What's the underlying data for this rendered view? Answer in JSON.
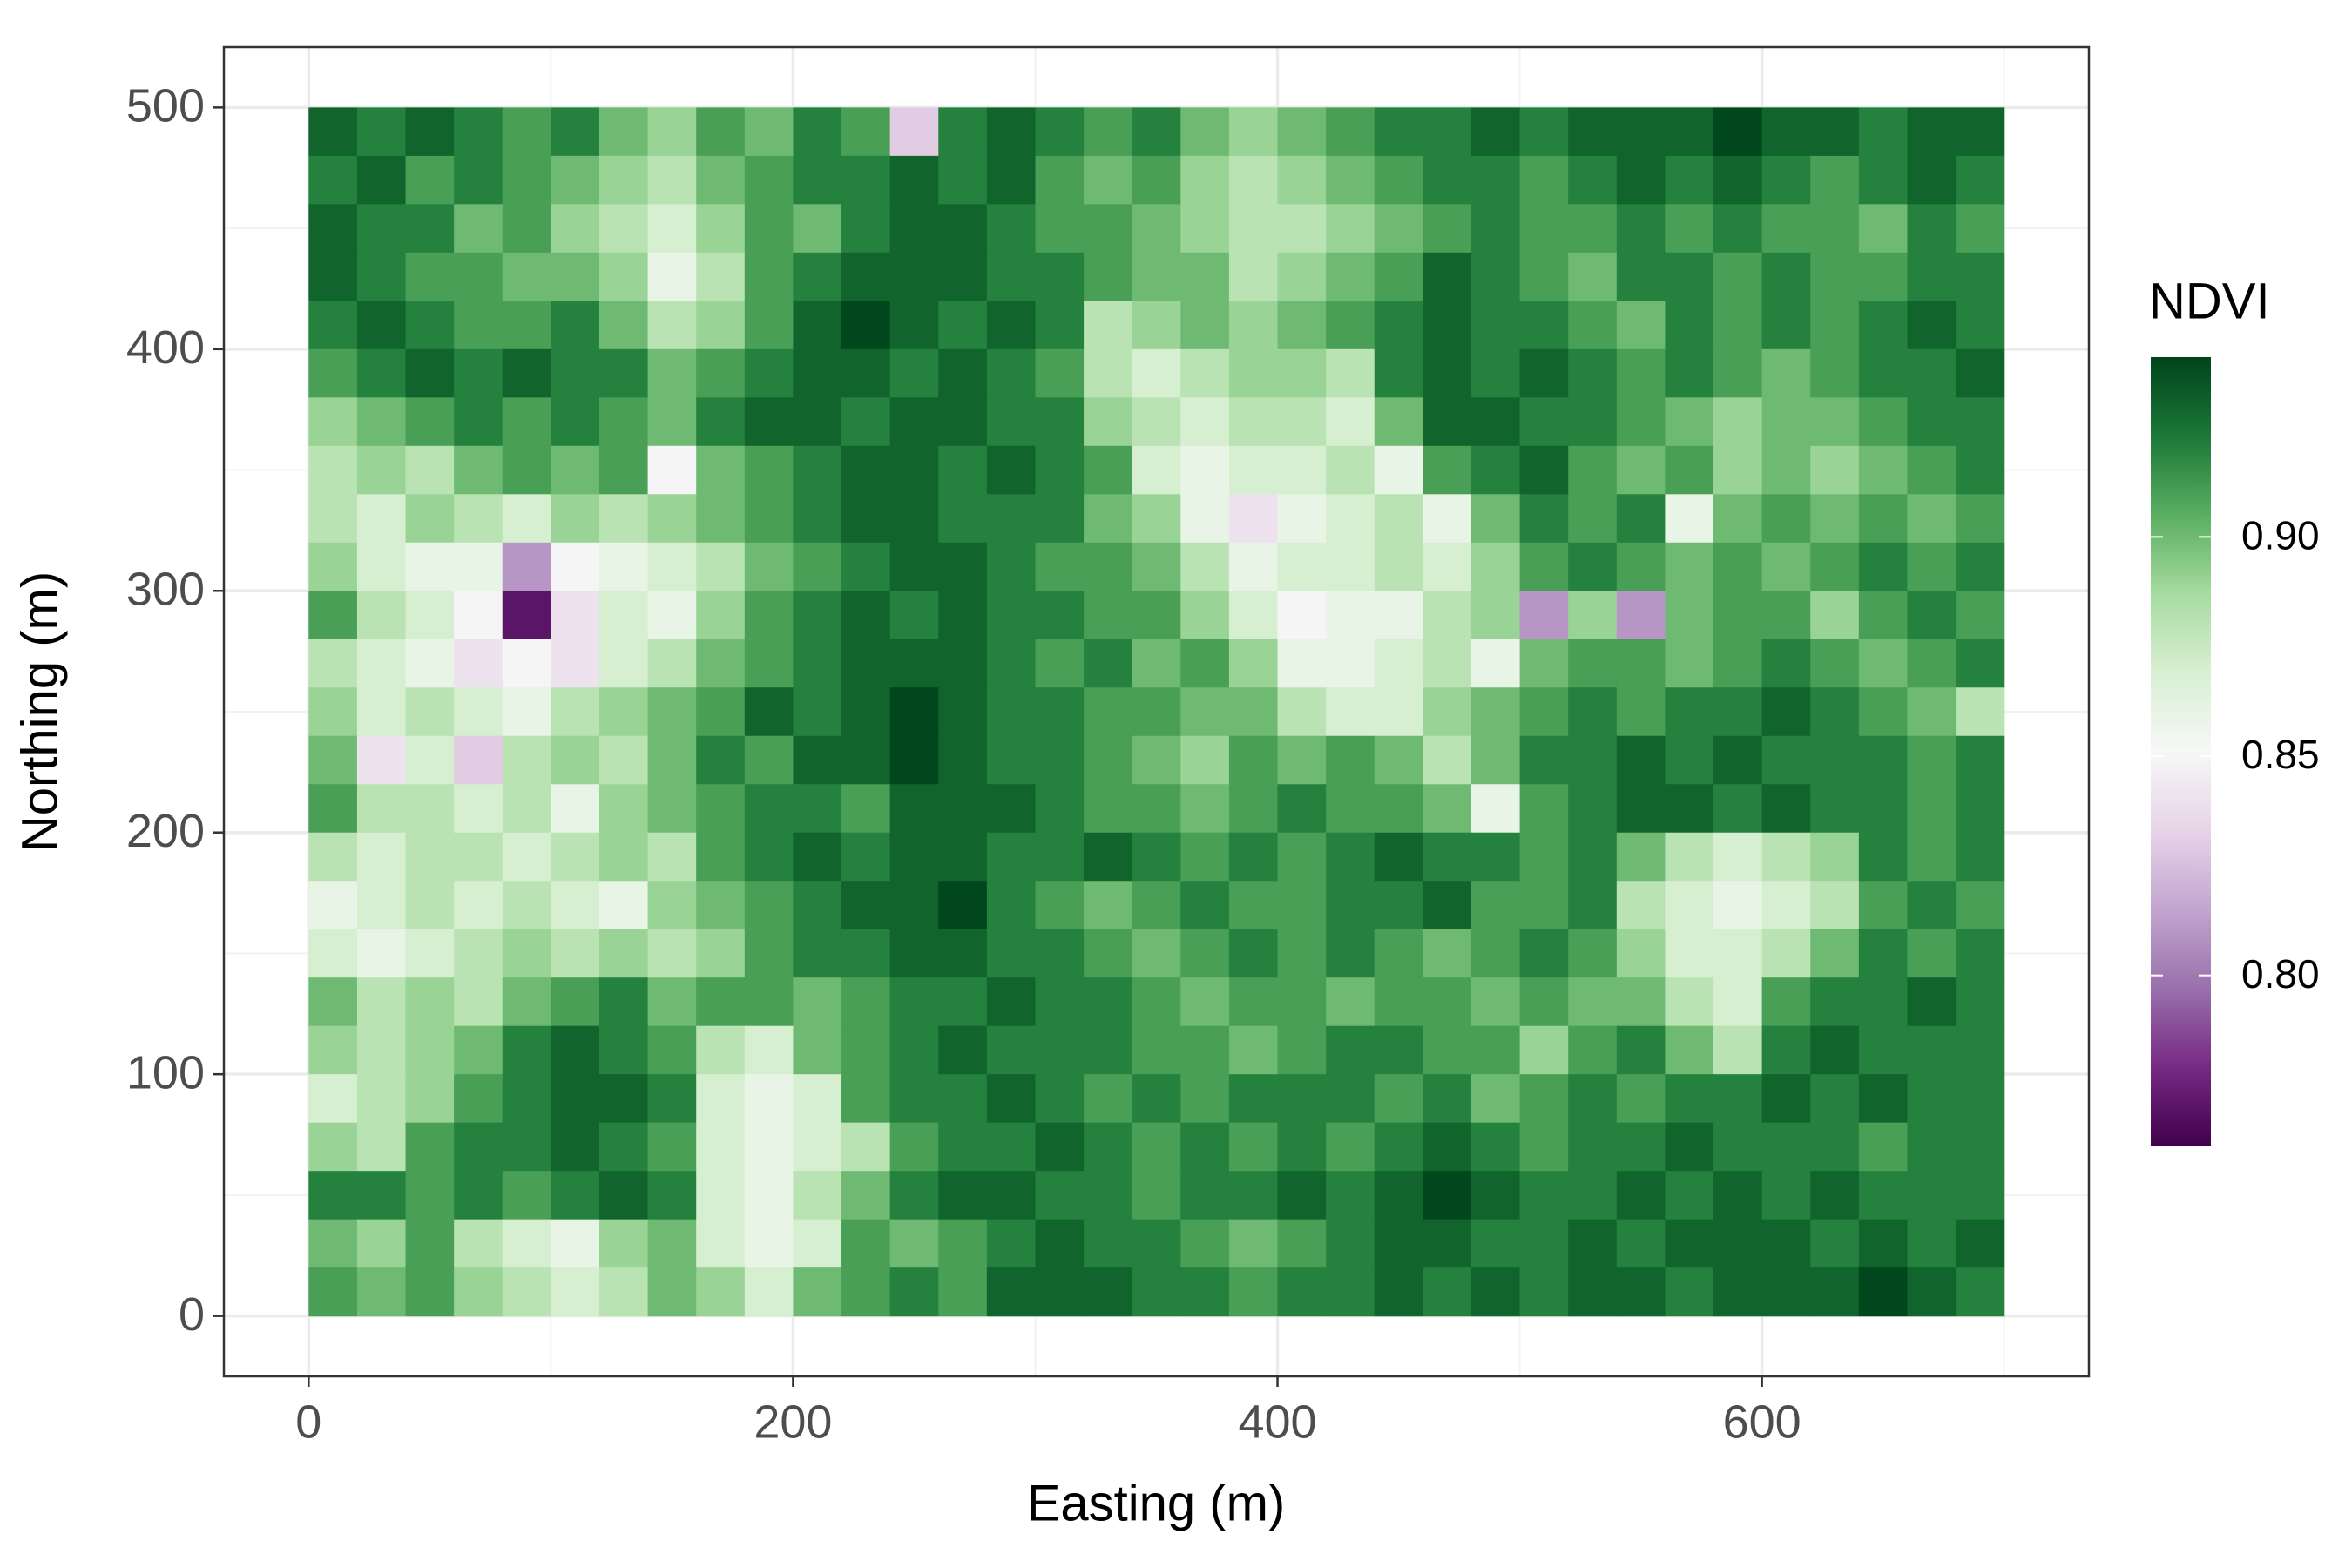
{
  "chart_data": {
    "type": "heatmap",
    "x_label": "Easting (m)",
    "y_label": "Northing (m)",
    "legend_title": "NDVI",
    "xlim": [
      -35,
      735
    ],
    "ylim": [
      -25,
      525
    ],
    "xticks": [
      0,
      200,
      400,
      600
    ],
    "yticks": [
      0,
      100,
      200,
      300,
      400,
      500
    ],
    "x_minor_grid": [
      100,
      300,
      500,
      700
    ],
    "y_minor_grid": [
      50,
      150,
      250,
      350,
      450
    ],
    "grid": true,
    "colorbar_lim": [
      0.761,
      0.941
    ],
    "colorbar_ticks": [
      {
        "value": 0.8,
        "label": "0.80"
      },
      {
        "value": 0.85,
        "label": "0.85"
      },
      {
        "value": 0.9,
        "label": "0.90"
      }
    ],
    "colors": [
      "#40004b",
      "#762a83",
      "#9970ab",
      "#c2a5cf",
      "#e7d4e8",
      "#f7f7f7",
      "#d9f0d3",
      "#a6dba0",
      "#5aae61",
      "#1b7837",
      "#00441b"
    ],
    "legend_position": "right",
    "x": [
      10,
      30,
      50,
      70,
      90,
      110,
      130,
      150,
      170,
      190,
      210,
      230,
      250,
      270,
      290,
      310,
      330,
      350,
      370,
      390,
      410,
      430,
      450,
      470,
      490,
      510,
      530,
      550,
      570,
      590,
      610,
      630,
      650,
      670,
      690
    ],
    "y": [
      490,
      470,
      450,
      430,
      410,
      390,
      370,
      350,
      330,
      310,
      290,
      270,
      250,
      230,
      210,
      190,
      170,
      150,
      130,
      110,
      90,
      70,
      50,
      30,
      10
    ],
    "values": [
      [
        0.93,
        0.92,
        0.93,
        0.92,
        0.91,
        0.92,
        0.9,
        0.89,
        0.91,
        0.9,
        0.92,
        0.91,
        0.83,
        0.92,
        0.93,
        0.92,
        0.91,
        0.92,
        0.9,
        0.89,
        0.9,
        0.91,
        0.92,
        0.92,
        0.93,
        0.92,
        0.93,
        0.93,
        0.93,
        0.94,
        0.93,
        0.93,
        0.92,
        0.93,
        0.93
      ],
      [
        0.92,
        0.93,
        0.91,
        0.92,
        0.91,
        0.9,
        0.89,
        0.88,
        0.9,
        0.91,
        0.92,
        0.92,
        0.93,
        0.92,
        0.93,
        0.91,
        0.9,
        0.91,
        0.89,
        0.88,
        0.89,
        0.9,
        0.91,
        0.92,
        0.92,
        0.91,
        0.92,
        0.93,
        0.92,
        0.93,
        0.92,
        0.91,
        0.92,
        0.93,
        0.92
      ],
      [
        0.93,
        0.92,
        0.92,
        0.9,
        0.91,
        0.89,
        0.88,
        0.87,
        0.89,
        0.91,
        0.9,
        0.92,
        0.93,
        0.93,
        0.92,
        0.91,
        0.91,
        0.9,
        0.89,
        0.88,
        0.88,
        0.89,
        0.9,
        0.91,
        0.92,
        0.91,
        0.91,
        0.92,
        0.91,
        0.92,
        0.91,
        0.91,
        0.9,
        0.92,
        0.91
      ],
      [
        0.93,
        0.92,
        0.91,
        0.91,
        0.9,
        0.9,
        0.89,
        0.86,
        0.88,
        0.91,
        0.92,
        0.93,
        0.93,
        0.93,
        0.92,
        0.92,
        0.91,
        0.9,
        0.9,
        0.88,
        0.89,
        0.9,
        0.91,
        0.93,
        0.92,
        0.91,
        0.9,
        0.92,
        0.92,
        0.91,
        0.92,
        0.91,
        0.91,
        0.92,
        0.92
      ],
      [
        0.92,
        0.93,
        0.92,
        0.91,
        0.91,
        0.92,
        0.9,
        0.88,
        0.89,
        0.91,
        0.93,
        0.94,
        0.93,
        0.92,
        0.93,
        0.92,
        0.88,
        0.89,
        0.9,
        0.89,
        0.9,
        0.91,
        0.92,
        0.93,
        0.92,
        0.92,
        0.91,
        0.9,
        0.92,
        0.91,
        0.92,
        0.91,
        0.92,
        0.93,
        0.92
      ],
      [
        0.91,
        0.92,
        0.93,
        0.92,
        0.93,
        0.92,
        0.92,
        0.9,
        0.91,
        0.92,
        0.93,
        0.93,
        0.92,
        0.93,
        0.92,
        0.91,
        0.88,
        0.87,
        0.88,
        0.89,
        0.89,
        0.88,
        0.92,
        0.93,
        0.92,
        0.93,
        0.92,
        0.91,
        0.92,
        0.91,
        0.9,
        0.91,
        0.92,
        0.92,
        0.93
      ],
      [
        0.89,
        0.9,
        0.91,
        0.92,
        0.91,
        0.92,
        0.91,
        0.9,
        0.92,
        0.93,
        0.93,
        0.92,
        0.93,
        0.93,
        0.92,
        0.92,
        0.89,
        0.88,
        0.87,
        0.88,
        0.88,
        0.87,
        0.9,
        0.93,
        0.93,
        0.92,
        0.92,
        0.91,
        0.9,
        0.89,
        0.9,
        0.9,
        0.91,
        0.92,
        0.92
      ],
      [
        0.88,
        0.89,
        0.88,
        0.9,
        0.91,
        0.9,
        0.91,
        0.85,
        0.9,
        0.91,
        0.92,
        0.93,
        0.93,
        0.92,
        0.93,
        0.92,
        0.91,
        0.87,
        0.86,
        0.87,
        0.87,
        0.88,
        0.86,
        0.91,
        0.92,
        0.93,
        0.91,
        0.9,
        0.91,
        0.89,
        0.9,
        0.89,
        0.9,
        0.91,
        0.92
      ],
      [
        0.88,
        0.87,
        0.89,
        0.88,
        0.87,
        0.89,
        0.88,
        0.89,
        0.9,
        0.91,
        0.92,
        0.93,
        0.93,
        0.92,
        0.92,
        0.92,
        0.9,
        0.89,
        0.86,
        0.84,
        0.86,
        0.87,
        0.88,
        0.86,
        0.9,
        0.92,
        0.91,
        0.92,
        0.86,
        0.9,
        0.91,
        0.9,
        0.91,
        0.9,
        0.91
      ],
      [
        0.89,
        0.87,
        0.86,
        0.86,
        0.81,
        0.85,
        0.86,
        0.87,
        0.88,
        0.9,
        0.91,
        0.92,
        0.93,
        0.93,
        0.92,
        0.91,
        0.91,
        0.9,
        0.88,
        0.86,
        0.87,
        0.87,
        0.88,
        0.87,
        0.89,
        0.91,
        0.92,
        0.91,
        0.9,
        0.91,
        0.9,
        0.91,
        0.92,
        0.91,
        0.92
      ],
      [
        0.91,
        0.88,
        0.87,
        0.85,
        0.77,
        0.84,
        0.87,
        0.86,
        0.89,
        0.91,
        0.92,
        0.93,
        0.92,
        0.93,
        0.92,
        0.92,
        0.91,
        0.91,
        0.89,
        0.87,
        0.85,
        0.86,
        0.86,
        0.88,
        0.89,
        0.81,
        0.89,
        0.81,
        0.9,
        0.91,
        0.91,
        0.89,
        0.91,
        0.92,
        0.91
      ],
      [
        0.88,
        0.87,
        0.86,
        0.84,
        0.85,
        0.84,
        0.87,
        0.88,
        0.9,
        0.91,
        0.92,
        0.93,
        0.93,
        0.93,
        0.92,
        0.91,
        0.92,
        0.9,
        0.91,
        0.89,
        0.86,
        0.86,
        0.87,
        0.88,
        0.86,
        0.9,
        0.91,
        0.91,
        0.9,
        0.91,
        0.92,
        0.91,
        0.9,
        0.91,
        0.92
      ],
      [
        0.89,
        0.87,
        0.88,
        0.87,
        0.86,
        0.88,
        0.89,
        0.9,
        0.91,
        0.93,
        0.92,
        0.93,
        0.94,
        0.93,
        0.92,
        0.92,
        0.91,
        0.91,
        0.9,
        0.9,
        0.88,
        0.87,
        0.87,
        0.89,
        0.9,
        0.91,
        0.92,
        0.91,
        0.92,
        0.92,
        0.93,
        0.92,
        0.91,
        0.9,
        0.88
      ],
      [
        0.9,
        0.84,
        0.87,
        0.83,
        0.88,
        0.89,
        0.88,
        0.9,
        0.92,
        0.91,
        0.93,
        0.93,
        0.94,
        0.93,
        0.92,
        0.92,
        0.91,
        0.9,
        0.89,
        0.91,
        0.9,
        0.91,
        0.9,
        0.88,
        0.9,
        0.92,
        0.92,
        0.93,
        0.92,
        0.93,
        0.92,
        0.92,
        0.92,
        0.91,
        0.92
      ],
      [
        0.91,
        0.88,
        0.88,
        0.87,
        0.88,
        0.86,
        0.89,
        0.9,
        0.91,
        0.92,
        0.92,
        0.91,
        0.93,
        0.93,
        0.93,
        0.92,
        0.91,
        0.91,
        0.9,
        0.91,
        0.92,
        0.91,
        0.91,
        0.9,
        0.86,
        0.91,
        0.92,
        0.93,
        0.93,
        0.92,
        0.93,
        0.92,
        0.92,
        0.91,
        0.92
      ],
      [
        0.88,
        0.87,
        0.88,
        0.88,
        0.87,
        0.88,
        0.89,
        0.88,
        0.91,
        0.92,
        0.93,
        0.92,
        0.93,
        0.93,
        0.92,
        0.92,
        0.93,
        0.92,
        0.91,
        0.92,
        0.91,
        0.92,
        0.93,
        0.92,
        0.92,
        0.91,
        0.92,
        0.9,
        0.88,
        0.87,
        0.88,
        0.89,
        0.92,
        0.91,
        0.92
      ],
      [
        0.86,
        0.87,
        0.88,
        0.87,
        0.88,
        0.87,
        0.86,
        0.89,
        0.9,
        0.91,
        0.92,
        0.93,
        0.93,
        0.94,
        0.92,
        0.91,
        0.9,
        0.91,
        0.92,
        0.91,
        0.91,
        0.92,
        0.92,
        0.93,
        0.91,
        0.91,
        0.92,
        0.88,
        0.87,
        0.86,
        0.87,
        0.88,
        0.91,
        0.92,
        0.91
      ],
      [
        0.87,
        0.86,
        0.87,
        0.88,
        0.89,
        0.88,
        0.89,
        0.88,
        0.89,
        0.91,
        0.92,
        0.92,
        0.93,
        0.93,
        0.92,
        0.92,
        0.91,
        0.9,
        0.91,
        0.92,
        0.91,
        0.92,
        0.91,
        0.9,
        0.91,
        0.92,
        0.91,
        0.89,
        0.87,
        0.87,
        0.88,
        0.9,
        0.92,
        0.91,
        0.92
      ],
      [
        0.9,
        0.88,
        0.89,
        0.88,
        0.9,
        0.91,
        0.92,
        0.9,
        0.91,
        0.91,
        0.9,
        0.91,
        0.92,
        0.92,
        0.93,
        0.92,
        0.92,
        0.91,
        0.9,
        0.91,
        0.91,
        0.9,
        0.91,
        0.91,
        0.9,
        0.91,
        0.9,
        0.9,
        0.88,
        0.87,
        0.91,
        0.92,
        0.92,
        0.93,
        0.92
      ],
      [
        0.89,
        0.88,
        0.89,
        0.9,
        0.92,
        0.93,
        0.92,
        0.91,
        0.88,
        0.87,
        0.9,
        0.91,
        0.92,
        0.93,
        0.92,
        0.92,
        0.92,
        0.91,
        0.91,
        0.9,
        0.91,
        0.92,
        0.92,
        0.91,
        0.91,
        0.89,
        0.91,
        0.92,
        0.9,
        0.88,
        0.92,
        0.93,
        0.92,
        0.92,
        0.92
      ],
      [
        0.87,
        0.88,
        0.89,
        0.91,
        0.92,
        0.93,
        0.93,
        0.92,
        0.87,
        0.86,
        0.87,
        0.91,
        0.92,
        0.92,
        0.93,
        0.92,
        0.91,
        0.92,
        0.91,
        0.92,
        0.92,
        0.92,
        0.91,
        0.92,
        0.9,
        0.91,
        0.92,
        0.91,
        0.92,
        0.92,
        0.93,
        0.92,
        0.93,
        0.92,
        0.92
      ],
      [
        0.89,
        0.88,
        0.91,
        0.92,
        0.92,
        0.93,
        0.92,
        0.91,
        0.87,
        0.86,
        0.87,
        0.88,
        0.91,
        0.92,
        0.92,
        0.93,
        0.92,
        0.91,
        0.92,
        0.91,
        0.92,
        0.91,
        0.92,
        0.93,
        0.92,
        0.91,
        0.92,
        0.92,
        0.93,
        0.92,
        0.92,
        0.92,
        0.91,
        0.92,
        0.92
      ],
      [
        0.92,
        0.92,
        0.91,
        0.92,
        0.91,
        0.92,
        0.93,
        0.92,
        0.87,
        0.86,
        0.88,
        0.9,
        0.92,
        0.93,
        0.93,
        0.92,
        0.92,
        0.91,
        0.92,
        0.92,
        0.93,
        0.92,
        0.93,
        0.94,
        0.93,
        0.92,
        0.92,
        0.93,
        0.92,
        0.93,
        0.92,
        0.93,
        0.92,
        0.92,
        0.92
      ],
      [
        0.9,
        0.89,
        0.91,
        0.88,
        0.87,
        0.86,
        0.89,
        0.9,
        0.87,
        0.86,
        0.87,
        0.91,
        0.9,
        0.91,
        0.92,
        0.93,
        0.92,
        0.92,
        0.91,
        0.9,
        0.91,
        0.92,
        0.93,
        0.93,
        0.92,
        0.92,
        0.93,
        0.92,
        0.93,
        0.93,
        0.93,
        0.92,
        0.93,
        0.92,
        0.93
      ],
      [
        0.91,
        0.9,
        0.91,
        0.89,
        0.88,
        0.87,
        0.88,
        0.9,
        0.89,
        0.87,
        0.9,
        0.91,
        0.92,
        0.91,
        0.93,
        0.93,
        0.93,
        0.92,
        0.92,
        0.91,
        0.92,
        0.92,
        0.93,
        0.92,
        0.93,
        0.92,
        0.93,
        0.93,
        0.92,
        0.93,
        0.93,
        0.93,
        0.94,
        0.93,
        0.92
      ]
    ]
  }
}
